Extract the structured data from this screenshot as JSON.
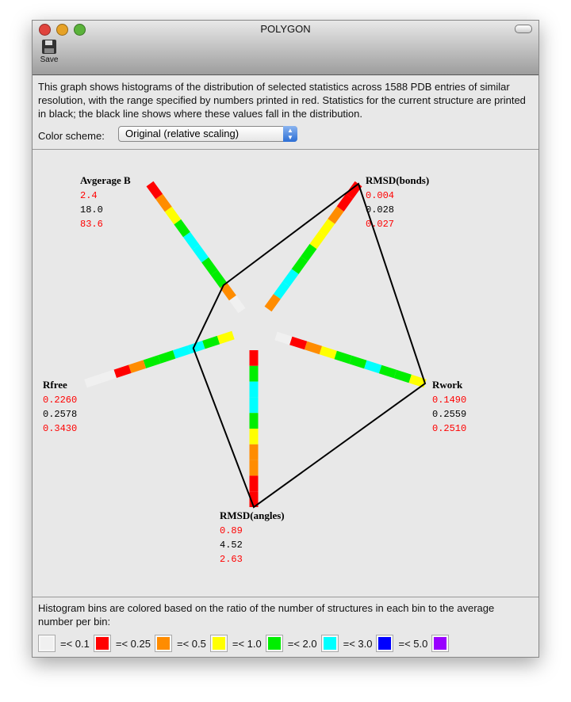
{
  "window": {
    "title": "POLYGON"
  },
  "toolbar": {
    "save_label": "Save",
    "save_icon": "floppy-disk-icon"
  },
  "description": "This graph shows histograms of the distribution of selected statistics across 1588 PDB entries of similar resolution, with the range specified by numbers printed in red.  Statistics for the current structure are printed in black; the black line shows where these values fall in the distribution.",
  "color_scheme": {
    "label": "Color scheme:",
    "selected": "Original (relative scaling)"
  },
  "colors": {
    "w": "#f0f0f0",
    "r": "#ff0000",
    "o": "#ff8c00",
    "y": "#ffff00",
    "g": "#00ee00",
    "c": "#00ffff",
    "b": "#0000ff",
    "p": "#9900ff",
    "range_text": "#ff0000",
    "current_text": "#000000"
  },
  "axes": [
    {
      "name": "Avgerage B",
      "min": "2.4",
      "current": "18.0",
      "max": "83.6",
      "bins": [
        "w",
        "o",
        "g",
        "g",
        "c",
        "c",
        "g",
        "y",
        "o",
        "r"
      ],
      "marker_fraction": 0.2
    },
    {
      "name": "RMSD(bonds)",
      "min": "0.004",
      "current": "0.028",
      "max": "0.027",
      "bins": [
        "o",
        "c",
        "c",
        "g",
        "g",
        "y",
        "y",
        "o",
        "r",
        "r"
      ],
      "marker_fraction": 1.0
    },
    {
      "name": "Rwork",
      "min": "0.1490",
      "current": "0.2559",
      "max": "0.2510",
      "bins": [
        "w",
        "r",
        "o",
        "y",
        "g",
        "g",
        "c",
        "g",
        "g",
        "y"
      ],
      "marker_fraction": 1.0
    },
    {
      "name": "RMSD(angles)",
      "min": "0.89",
      "current": "4.52",
      "max": "2.63",
      "bins": [
        "r",
        "g",
        "c",
        "c",
        "g",
        "y",
        "o",
        "o",
        "r",
        "r"
      ],
      "marker_fraction": 1.0
    },
    {
      "name": "Rfree",
      "min": "0.2260",
      "current": "0.2578",
      "max": "0.3430",
      "bins": [
        "y",
        "g",
        "c",
        "c",
        "g",
        "g",
        "o",
        "r",
        "w",
        "w"
      ],
      "marker_fraction": 0.27
    }
  ],
  "legend": {
    "text": "Histogram bins are colored based on the ratio of the number of structures in each bin to the average number per bin:",
    "items": [
      {
        "color": "w",
        "label": "=< 0.1"
      },
      {
        "color": "r",
        "label": "=< 0.25"
      },
      {
        "color": "o",
        "label": "=< 0.5"
      },
      {
        "color": "y",
        "label": "=< 1.0"
      },
      {
        "color": "g",
        "label": "=< 2.0"
      },
      {
        "color": "c",
        "label": "=< 3.0"
      },
      {
        "color": "b",
        "label": "=< 5.0"
      },
      {
        "color": "p",
        "label": ""
      }
    ]
  }
}
